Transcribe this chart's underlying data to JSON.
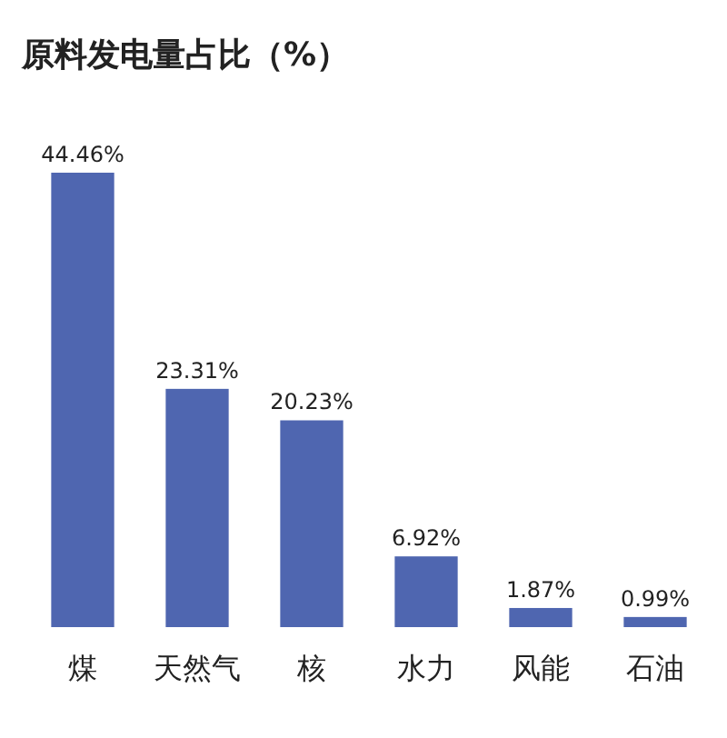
{
  "chart_data": {
    "type": "bar",
    "title": "原料发电量占比（%）",
    "categories": [
      "煤",
      "天然气",
      "核",
      "水力",
      "风能",
      "石油"
    ],
    "values": [
      44.46,
      23.31,
      20.23,
      6.92,
      1.87,
      0.99
    ],
    "value_labels": [
      "44.46%",
      "23.31%",
      "20.23%",
      "6.92%",
      "1.87%",
      "0.99%"
    ],
    "color": "#4f66b0"
  }
}
